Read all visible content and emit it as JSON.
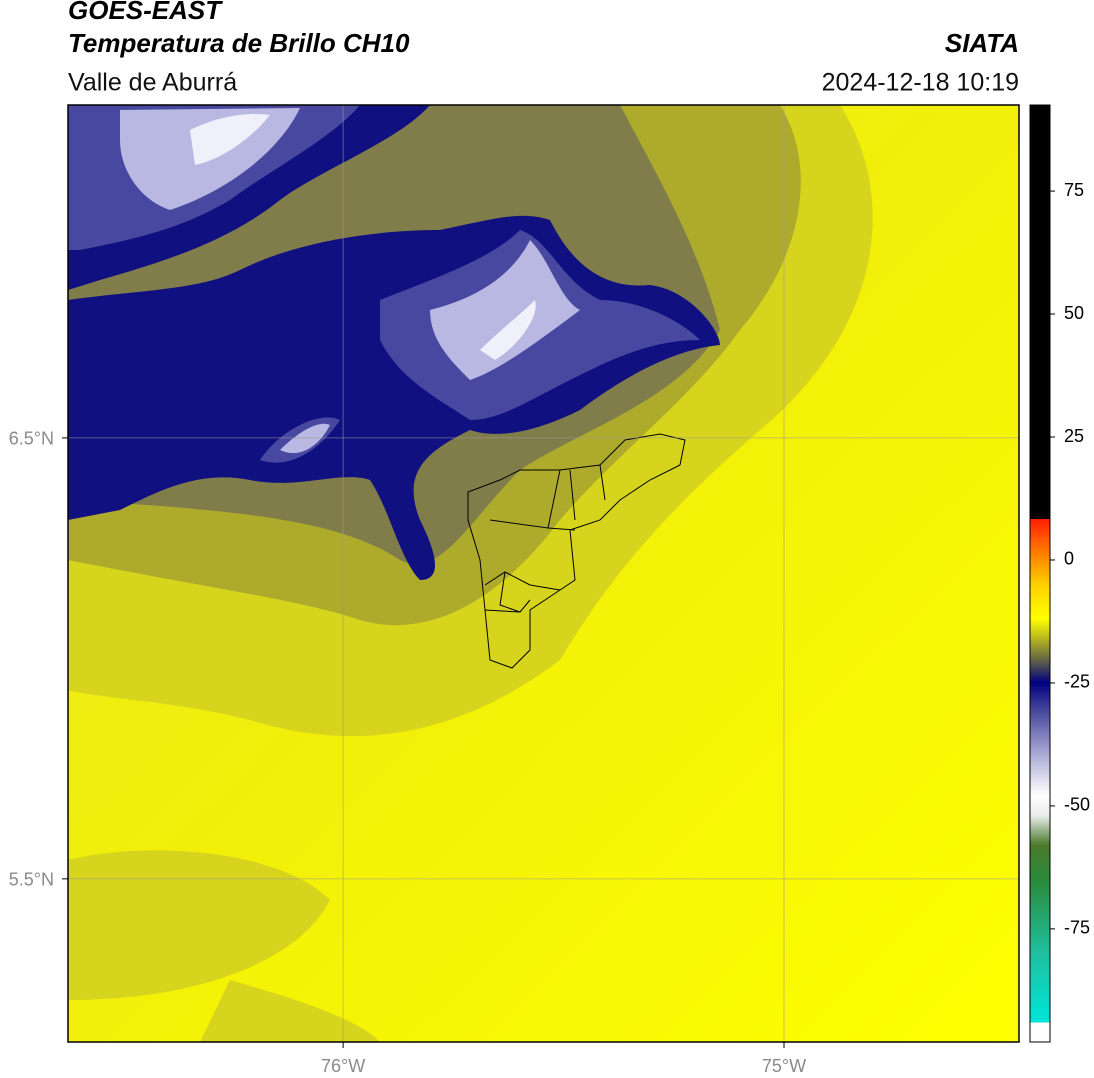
{
  "header": {
    "title": "GOES-EAST",
    "subtitle": "Temperatura de Brillo CH10",
    "region": "Valle de Aburrá",
    "source": "SIATA",
    "datetime": "2024-12-18 10:19"
  },
  "map": {
    "xlim": [
      -76.624,
      -74.467
    ],
    "ylim": [
      5.13,
      7.255
    ],
    "xticks": [
      {
        "value": -76,
        "label": "76°W"
      },
      {
        "value": -75,
        "label": "75°W"
      }
    ],
    "yticks": [
      {
        "value": 6.5,
        "label": "6.5°N"
      },
      {
        "value": 5.5,
        "label": "5.5°N"
      }
    ],
    "grid": true
  },
  "colorbar": {
    "lim": [
      -98,
      92.5
    ],
    "ticks": [
      75,
      50,
      25,
      0,
      -25,
      -50,
      -75
    ],
    "stops": [
      {
        "value": -98,
        "color": "#ffffff"
      },
      {
        "value": -94,
        "color": "#ffffff"
      },
      {
        "value": -94,
        "color": "#00e5d8"
      },
      {
        "value": -80,
        "color": "#20c0a0"
      },
      {
        "value": -65,
        "color": "#2a8a3a"
      },
      {
        "value": -58,
        "color": "#4a7a2a"
      },
      {
        "value": -52,
        "color": "#e8ece8"
      },
      {
        "value": -48,
        "color": "#ffffff"
      },
      {
        "value": -40,
        "color": "#b0b0d8"
      },
      {
        "value": -30,
        "color": "#404098"
      },
      {
        "value": -25,
        "color": "#000080"
      },
      {
        "value": -20,
        "color": "#6a6a40"
      },
      {
        "value": -15,
        "color": "#c8c818"
      },
      {
        "value": -12,
        "color": "#ffff00"
      },
      {
        "value": -5,
        "color": "#ffd000"
      },
      {
        "value": 0,
        "color": "#ff9000"
      },
      {
        "value": 8.3,
        "color": "#ff2000"
      },
      {
        "value": 8.3,
        "color": "#000000"
      },
      {
        "value": 92.5,
        "color": "#000000"
      }
    ]
  }
}
